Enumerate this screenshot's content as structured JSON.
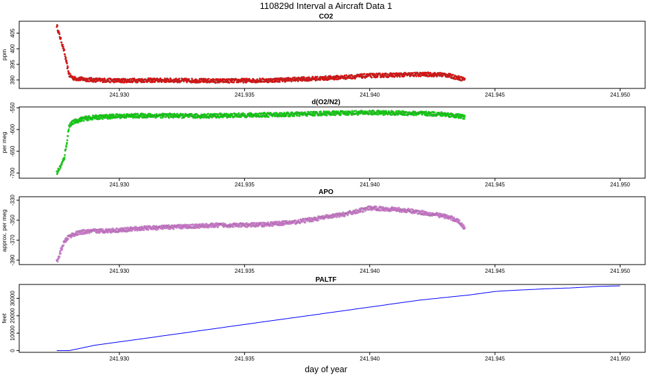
{
  "chart_data": {
    "title": "110829d   Interval a Aircraft Data 1",
    "xlabel": "day of year",
    "x_ticks": [
      "241.930",
      "241.935",
      "241.940",
      "241.945",
      "241.950"
    ],
    "x_tick_values": [
      241.93,
      241.935,
      241.94,
      241.945,
      241.95
    ],
    "xlim": [
      241.926,
      241.951
    ],
    "panels": [
      {
        "type": "scatter",
        "title": "CO2",
        "ylabel": "ppm",
        "color": "#ff0000",
        "ylim": [
          387.3,
          408.8
        ],
        "y_ticks": [
          390,
          395,
          400,
          405
        ],
        "y_tick_labels": [
          "390",
          "395",
          "400",
          "405"
        ],
        "x": [
          241.9275,
          241.9276,
          241.9277,
          241.9278,
          241.9279,
          241.928,
          241.9282,
          241.9285,
          241.929,
          241.93,
          241.931,
          241.932,
          241.933,
          241.934,
          241.935,
          241.936,
          241.937,
          241.938,
          241.939,
          241.94,
          241.941,
          241.942,
          241.943,
          241.9438
        ],
        "y": [
          407.5,
          404.5,
          402.0,
          399.0,
          395.0,
          391.5,
          390.5,
          390.3,
          390.0,
          389.8,
          389.9,
          389.9,
          389.8,
          389.7,
          389.8,
          389.9,
          390.2,
          390.5,
          390.9,
          391.4,
          391.6,
          391.8,
          391.7,
          390.2
        ]
      },
      {
        "type": "scatter",
        "title": "d(O2/N2)",
        "ylabel": "per meg",
        "color": "#00ee00",
        "ylim": [
          -712,
          -548
        ],
        "y_ticks": [
          -700,
          -650,
          -600,
          -550
        ],
        "y_tick_labels": [
          "-700",
          "-650",
          "-600",
          "-550"
        ],
        "x": [
          241.9275,
          241.9276,
          241.9277,
          241.9278,
          241.9279,
          241.928,
          241.9282,
          241.9285,
          241.929,
          241.93,
          241.931,
          241.932,
          241.933,
          241.934,
          241.935,
          241.936,
          241.937,
          241.938,
          241.939,
          241.94,
          241.941,
          241.942,
          241.943,
          241.9438
        ],
        "y": [
          -700,
          -690,
          -680,
          -665,
          -630,
          -590,
          -582,
          -576,
          -572,
          -569,
          -568,
          -568,
          -569,
          -568,
          -567,
          -566,
          -565,
          -563,
          -562,
          -561,
          -562,
          -563,
          -565,
          -571
        ]
      },
      {
        "type": "scatter",
        "title": "APO",
        "ylabel": "approx. per meg",
        "color": "#ee82ee",
        "ylim": [
          -394.5,
          -326.5
        ],
        "y_ticks": [
          -390,
          -370,
          -350,
          -330
        ],
        "y_tick_labels": [
          "-390",
          "-370",
          "-350",
          "-330"
        ],
        "x": [
          241.9275,
          241.9276,
          241.9277,
          241.9278,
          241.928,
          241.9282,
          241.9285,
          241.929,
          241.93,
          241.931,
          241.932,
          241.933,
          241.934,
          241.935,
          241.936,
          241.937,
          241.938,
          241.939,
          241.94,
          241.941,
          241.942,
          241.943,
          241.9435,
          241.9438
        ],
        "y": [
          -392,
          -386,
          -378,
          -372,
          -366,
          -364,
          -362,
          -361,
          -360,
          -358,
          -357,
          -356,
          -355,
          -355,
          -354,
          -352,
          -348,
          -344,
          -338,
          -339,
          -342,
          -346,
          -350,
          -358
        ]
      },
      {
        "type": "line",
        "title": "PALTF",
        "ylabel": "feet",
        "color": "#0000ff",
        "ylim": [
          -1000,
          38000
        ],
        "y_ticks": [
          0,
          10000,
          20000,
          30000
        ],
        "y_tick_labels": [
          "0",
          "10000",
          "20000",
          "30000"
        ],
        "x": [
          241.9275,
          241.928,
          241.9285,
          241.929,
          241.93,
          241.932,
          241.934,
          241.936,
          241.938,
          241.94,
          241.942,
          241.944,
          241.945,
          241.946,
          241.947,
          241.948,
          241.949,
          241.95
        ],
        "y": [
          0,
          0,
          1500,
          3000,
          5000,
          9000,
          13000,
          17000,
          21000,
          25000,
          29000,
          32000,
          34000,
          34800,
          35500,
          36000,
          36800,
          37200
        ]
      }
    ]
  }
}
